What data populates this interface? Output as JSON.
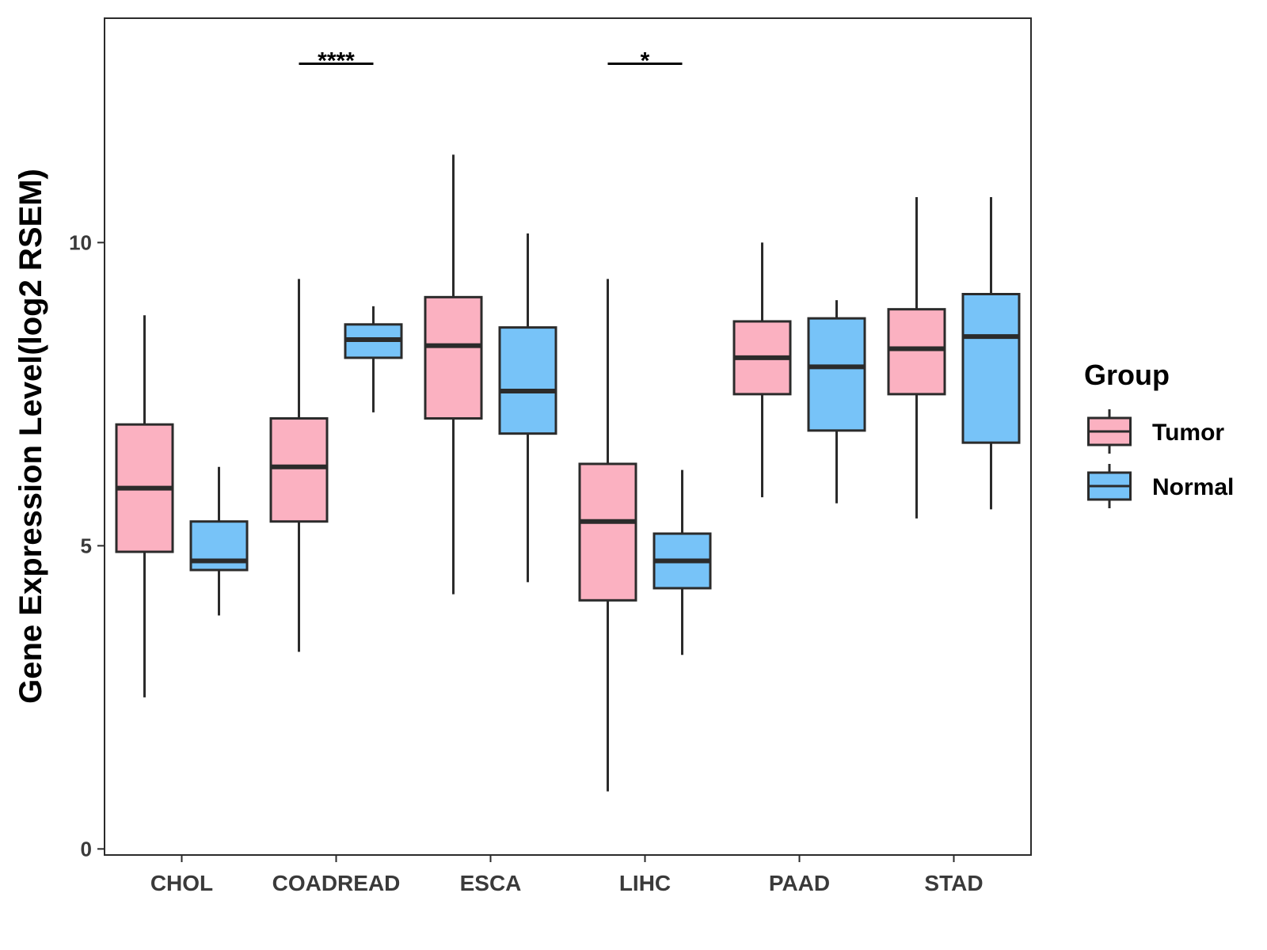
{
  "chart_data": {
    "type": "boxplot",
    "title": "",
    "xlabel": "",
    "ylabel": "Gene Expression Level(log2 RSEM)",
    "ylim": [
      -0.1,
      13.7
    ],
    "yticks": [
      0,
      5,
      10
    ],
    "categories": [
      "CHOL",
      "COADREAD",
      "ESCA",
      "LIHC",
      "PAAD",
      "STAD"
    ],
    "legend": {
      "title": "Group",
      "position": "right",
      "items": [
        {
          "name": "Tumor",
          "color": "#FBB1C1"
        },
        {
          "name": "Normal",
          "color": "#77C3F8"
        }
      ]
    },
    "series": [
      {
        "name": "Tumor",
        "color": "#FBB1C1",
        "boxes": [
          {
            "category": "CHOL",
            "min": 2.5,
            "q1": 4.9,
            "median": 5.95,
            "q3": 7.0,
            "max": 8.8
          },
          {
            "category": "COADREAD",
            "min": 3.25,
            "q1": 5.4,
            "median": 6.3,
            "q3": 7.1,
            "max": 9.4
          },
          {
            "category": "ESCA",
            "min": 4.2,
            "q1": 7.1,
            "median": 8.3,
            "q3": 9.1,
            "max": 11.45
          },
          {
            "category": "LIHC",
            "min": 0.95,
            "q1": 4.1,
            "median": 5.4,
            "q3": 6.35,
            "max": 9.4
          },
          {
            "category": "PAAD",
            "min": 5.8,
            "q1": 7.5,
            "median": 8.1,
            "q3": 8.7,
            "max": 10.0
          },
          {
            "category": "STAD",
            "min": 5.45,
            "q1": 7.5,
            "median": 8.25,
            "q3": 8.9,
            "max": 10.75
          }
        ]
      },
      {
        "name": "Normal",
        "color": "#77C3F8",
        "boxes": [
          {
            "category": "CHOL",
            "min": 3.85,
            "q1": 4.6,
            "median": 4.75,
            "q3": 5.4,
            "max": 6.3
          },
          {
            "category": "COADREAD",
            "min": 7.2,
            "q1": 8.1,
            "median": 8.4,
            "q3": 8.65,
            "max": 8.95
          },
          {
            "category": "ESCA",
            "min": 4.4,
            "q1": 6.85,
            "median": 7.55,
            "q3": 8.6,
            "max": 10.15
          },
          {
            "category": "LIHC",
            "min": 3.2,
            "q1": 4.3,
            "median": 4.75,
            "q3": 5.2,
            "max": 6.25
          },
          {
            "category": "PAAD",
            "min": 5.7,
            "q1": 6.9,
            "median": 7.95,
            "q3": 8.75,
            "max": 9.05
          },
          {
            "category": "STAD",
            "min": 5.6,
            "q1": 6.7,
            "median": 8.45,
            "q3": 9.15,
            "max": 10.75
          }
        ]
      }
    ],
    "annotations": [
      {
        "category": "COADREAD",
        "label": "****",
        "y": 12.95
      },
      {
        "category": "LIHC",
        "label": "*",
        "y": 12.95
      }
    ]
  }
}
